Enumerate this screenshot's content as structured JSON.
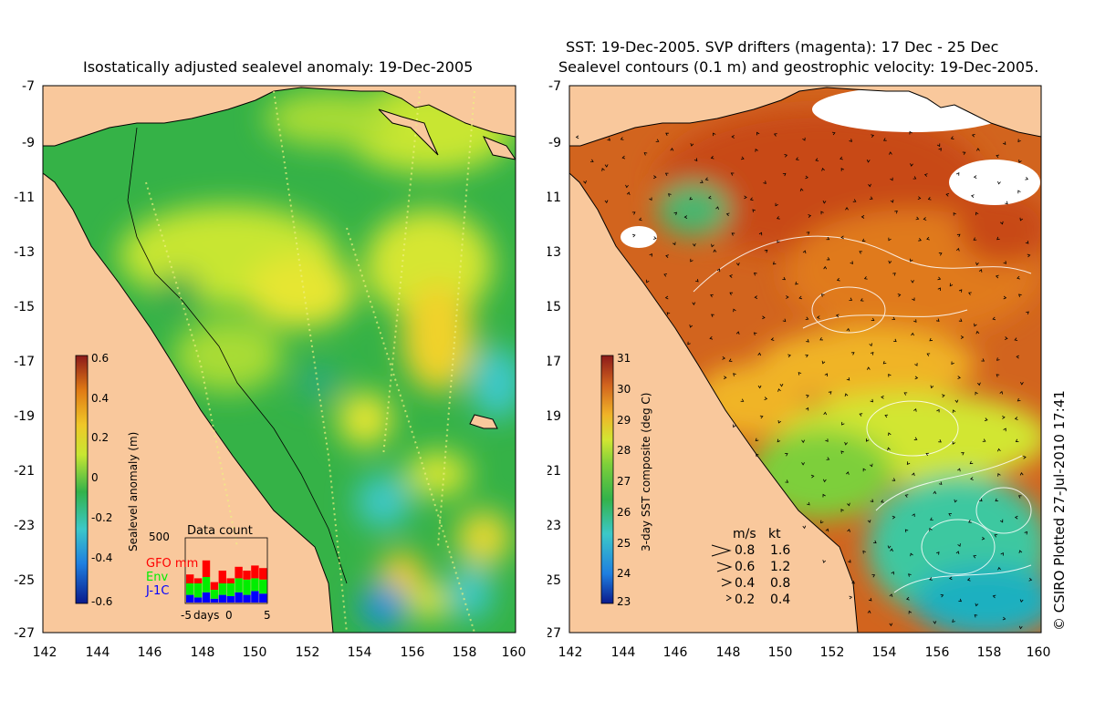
{
  "left_panel": {
    "title": "Isostatically adjusted sealevel anomaly: 19-Dec-2005",
    "colorbar": {
      "label": "Sealevel anomaly (m)",
      "ticks": [
        "0.6",
        "0.4",
        "0.2",
        "0",
        "-0.2",
        "-0.4",
        "-0.6"
      ],
      "colors": [
        "#0a1a8c",
        "#1f7fe0",
        "#3cc8c8",
        "#33b24a",
        "#c8e632",
        "#f0c828",
        "#e07a14",
        "#8c1a1a"
      ]
    },
    "data_count": {
      "title": "Data count",
      "ymax_label": "500",
      "x_label": "days",
      "x_ticks": [
        "-5",
        "0",
        "5"
      ],
      "legend": [
        {
          "name": "GFO mm",
          "color": "#ff0000"
        },
        {
          "name": "Env",
          "color": "#00ee00"
        },
        {
          "name": "J-1C",
          "color": "#0000ff"
        }
      ],
      "bars": [
        {
          "day": -5,
          "j1c": 60,
          "env": 90,
          "gfo": 70
        },
        {
          "day": -4,
          "j1c": 40,
          "env": 110,
          "gfo": 40
        },
        {
          "day": -3,
          "j1c": 80,
          "env": 120,
          "gfo": 130
        },
        {
          "day": -2,
          "j1c": 30,
          "env": 70,
          "gfo": 60
        },
        {
          "day": -1,
          "j1c": 60,
          "env": 90,
          "gfo": 100
        },
        {
          "day": 0,
          "j1c": 50,
          "env": 100,
          "gfo": 40
        },
        {
          "day": 1,
          "j1c": 80,
          "env": 110,
          "gfo": 90
        },
        {
          "day": 2,
          "j1c": 60,
          "env": 120,
          "gfo": 70
        },
        {
          "day": 3,
          "j1c": 90,
          "env": 100,
          "gfo": 100
        },
        {
          "day": 4,
          "j1c": 70,
          "env": 110,
          "gfo": 90
        }
      ]
    }
  },
  "right_panel": {
    "title_line1": "SST: 19-Dec-2005. SVP drifters (magenta): 17 Dec - 25 Dec",
    "title_line2": "Sealevel contours (0.1 m) and geostrophic velocity: 19-Dec-2005.",
    "colorbar": {
      "label": "3-day SST composite (deg C)",
      "ticks": [
        "31",
        "30",
        "29",
        "28",
        "27",
        "26",
        "25",
        "24",
        "23"
      ],
      "colors": [
        "#0a1a8c",
        "#1f7fe0",
        "#3cc8c8",
        "#33b24a",
        "#7dcf3a",
        "#d2e632",
        "#f0b428",
        "#d2641e",
        "#8c1a1a"
      ]
    },
    "velocity_legend": {
      "header_ms": "m/s",
      "header_kt": "kt",
      "rows": [
        {
          "ms": "0.8",
          "kt": "1.6"
        },
        {
          "ms": "0.6",
          "kt": "1.2"
        },
        {
          "ms": "0.4",
          "kt": "0.8"
        },
        {
          "ms": "0.2",
          "kt": "0.4"
        }
      ]
    }
  },
  "axes": {
    "x_ticks": [
      "142",
      "144",
      "146",
      "148",
      "150",
      "152",
      "154",
      "156",
      "158",
      "160"
    ],
    "y_ticks": [
      "-7",
      "-9",
      "-11",
      "-13",
      "-15",
      "-17",
      "-19",
      "-21",
      "-23",
      "-25",
      "-27"
    ]
  },
  "colors": {
    "land": "#f9c89c",
    "coast": "#000000"
  },
  "credit": "© CSIRO Plotted 27-Jul-2010 17:41"
}
